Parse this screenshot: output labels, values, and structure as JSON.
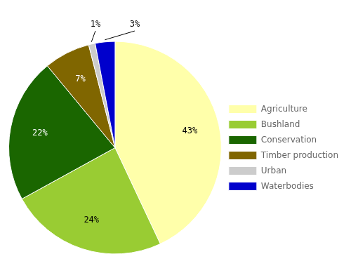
{
  "chart_data": {
    "type": "pie",
    "categories": [
      "Agriculture",
      "Bushland",
      "Conservation",
      "Timber production",
      "Urban",
      "Waterbodies"
    ],
    "values": [
      43,
      24,
      22,
      7,
      1,
      3
    ],
    "value_labels": [
      "43%",
      "24%",
      "22%",
      "7%",
      "1%",
      "3%"
    ],
    "colors": [
      "#ffffaa",
      "#99cc33",
      "#1a6600",
      "#806600",
      "#cccccc",
      "#0000cc"
    ],
    "data_labels": true,
    "legend": "right"
  }
}
